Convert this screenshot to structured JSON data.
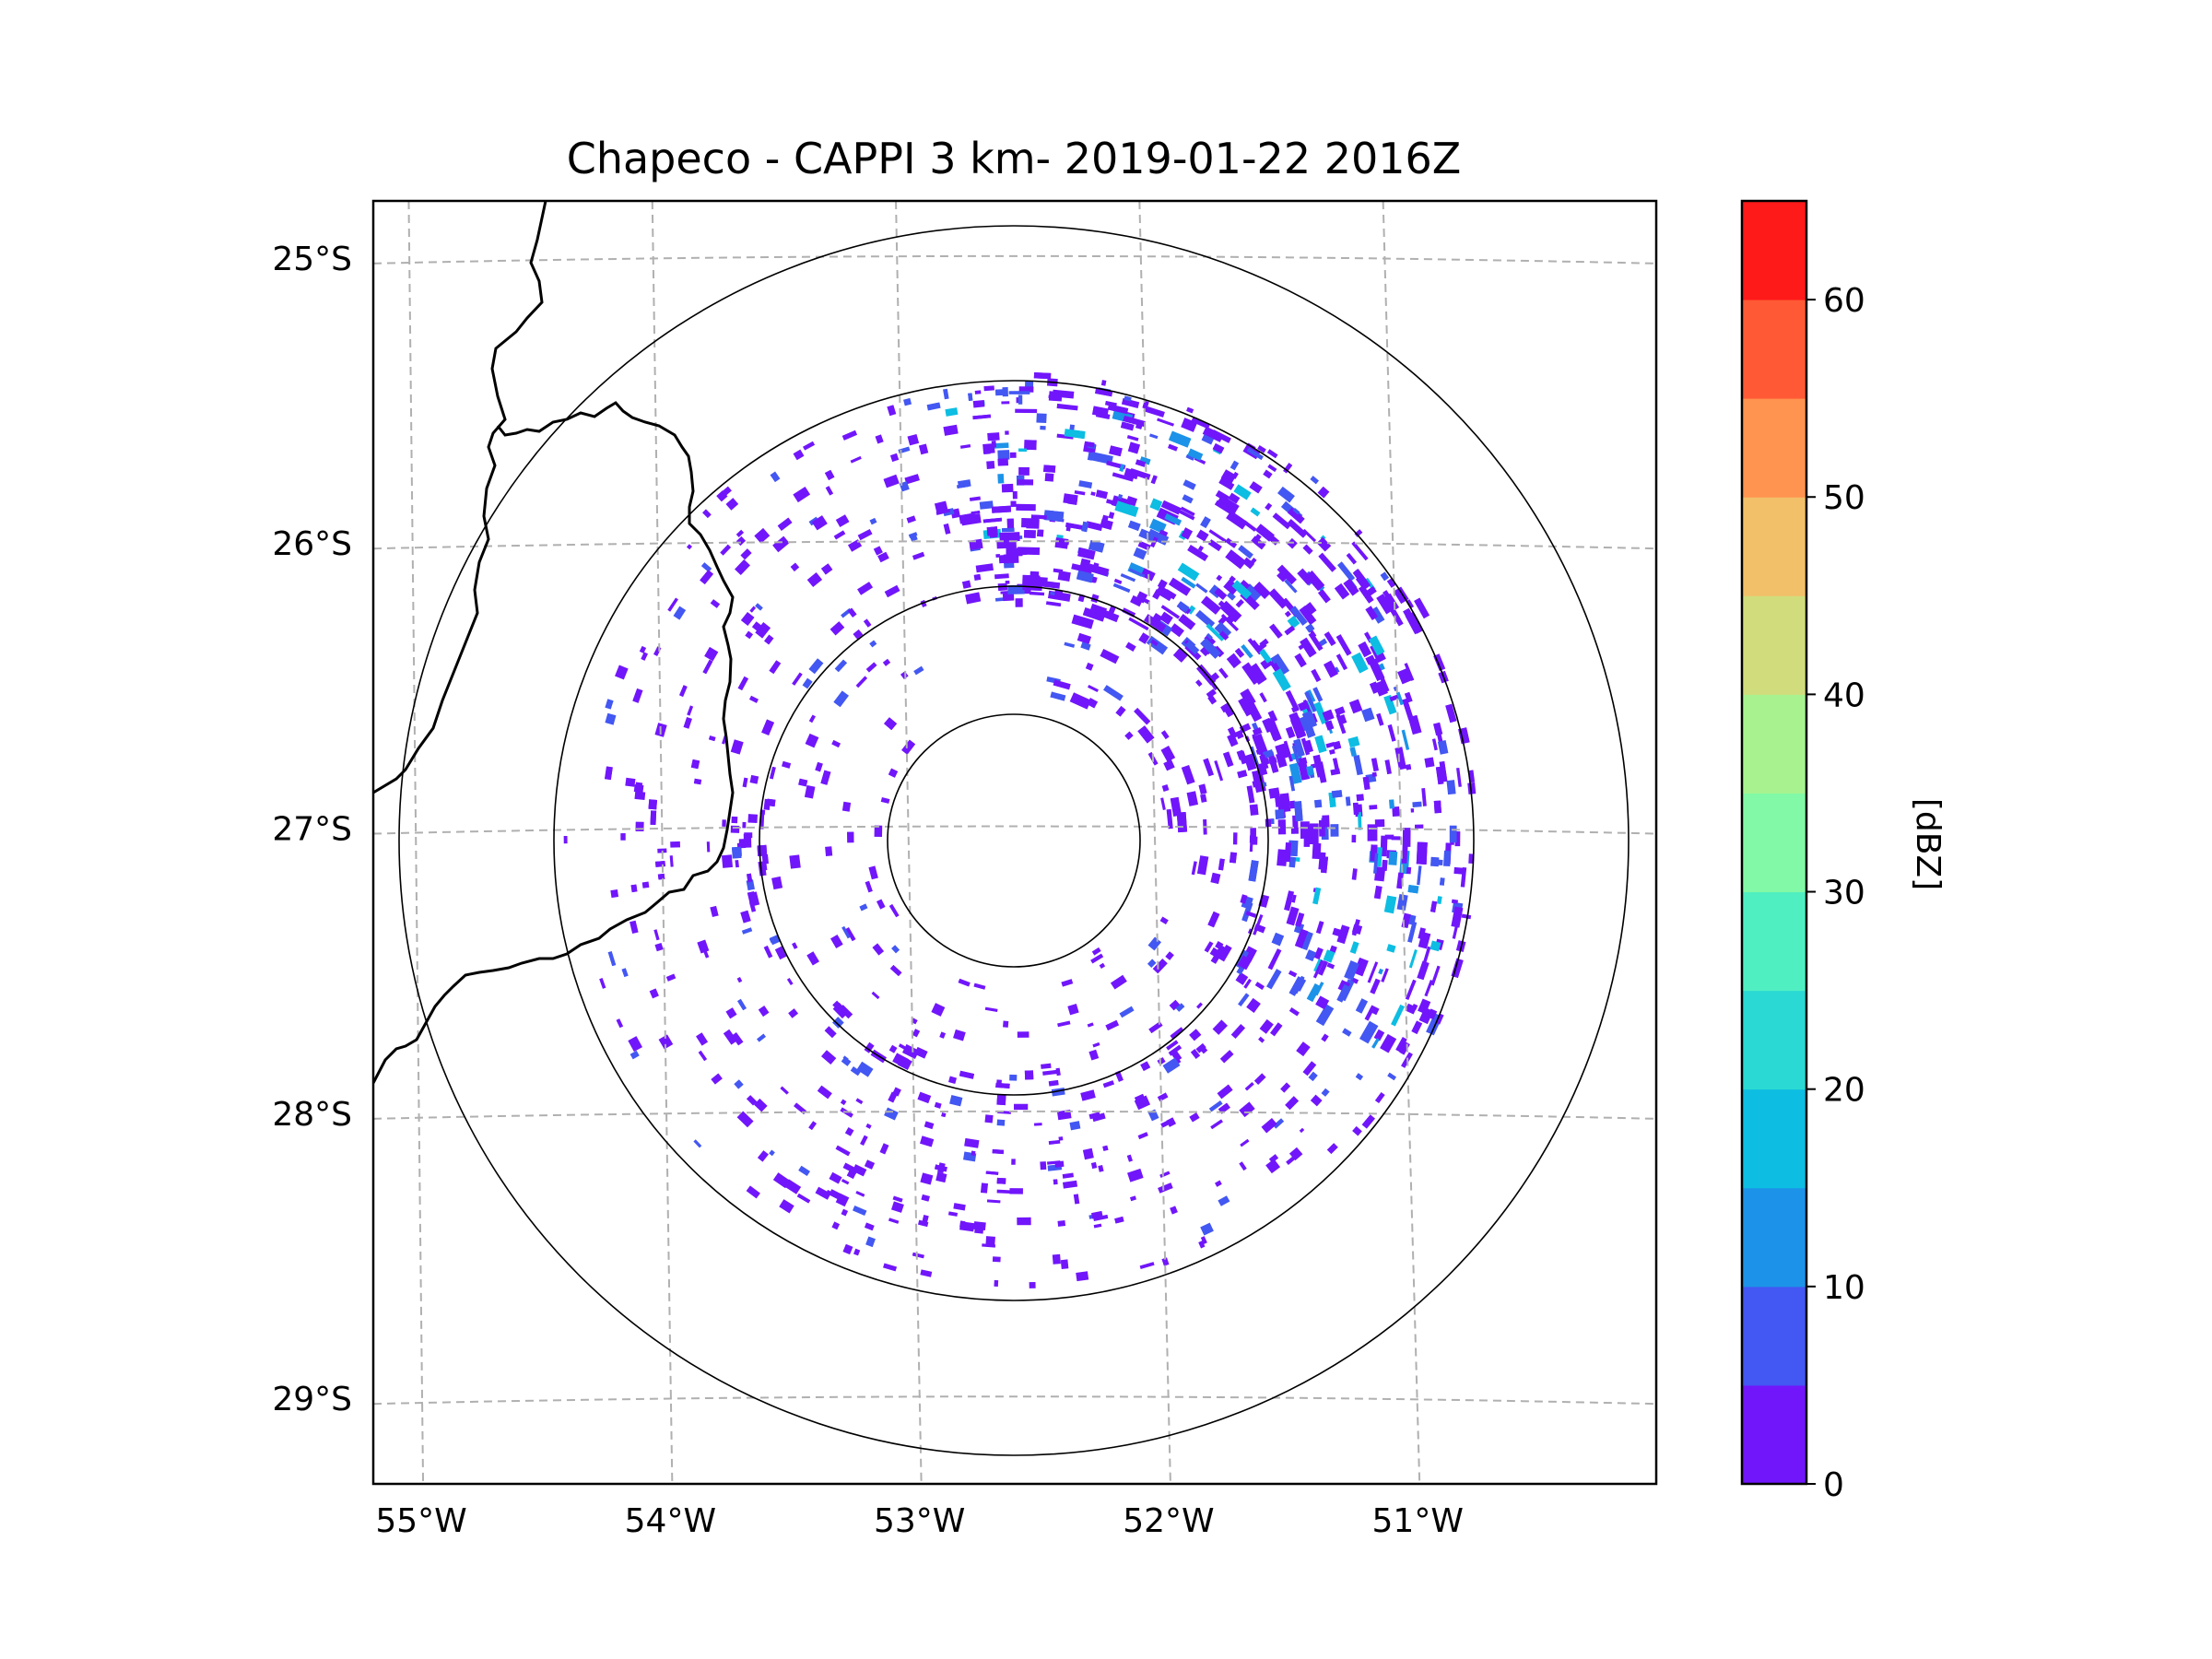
{
  "chart_data": {
    "type": "heatmap",
    "title": "Chapeco - CAPPI 3 km- 2019-01-22 2016Z",
    "product": "CAPPI",
    "radar_site": "Chapeco",
    "cappi_height": "3 km",
    "timestamp": "2019-01-22 2016Z",
    "map": {
      "lon_range": [
        -55.2,
        -50.05
      ],
      "lat_range": [
        -29.3,
        -24.8
      ],
      "lon_ticks": [
        -55,
        -54,
        -53,
        -52,
        -51
      ],
      "lon_tick_labels": [
        "55°W",
        "54°W",
        "53°W",
        "52°W",
        "51°W"
      ],
      "lat_ticks": [
        -25,
        -26,
        -27,
        -28,
        -29
      ],
      "lat_tick_labels": [
        "25°S",
        "26°S",
        "27°S",
        "28°S",
        "29°S"
      ],
      "gridlines": "dashed",
      "range_rings": 4,
      "radar_center": {
        "lon": -52.6,
        "lat": -27.02
      },
      "reflectivity_field": "radar echoes concentrated in a ring at mid-range, strongest band to the northeast and east of the radar, scattered weak echoes elsewhere"
    },
    "colorbar": {
      "label": "[dBZ]",
      "range": [
        0,
        65
      ],
      "ticks": [
        0,
        10,
        20,
        30,
        40,
        50,
        60
      ],
      "tick_labels": [
        "0",
        "10",
        "20",
        "30",
        "40",
        "50",
        "60"
      ],
      "levels": [
        {
          "min": 0,
          "max": 5,
          "color": "#7116fb"
        },
        {
          "min": 5,
          "max": 10,
          "color": "#4357f2"
        },
        {
          "min": 10,
          "max": 15,
          "color": "#1c93e8"
        },
        {
          "min": 15,
          "max": 20,
          "color": "#0dbde2"
        },
        {
          "min": 20,
          "max": 25,
          "color": "#2ad9d3"
        },
        {
          "min": 25,
          "max": 30,
          "color": "#50efc2"
        },
        {
          "min": 30,
          "max": 35,
          "color": "#82f9a6"
        },
        {
          "min": 35,
          "max": 40,
          "color": "#a8f38f"
        },
        {
          "min": 40,
          "max": 45,
          "color": "#d1dd7c"
        },
        {
          "min": 45,
          "max": 50,
          "color": "#f3c06a"
        },
        {
          "min": 50,
          "max": 55,
          "color": "#ff9350"
        },
        {
          "min": 55,
          "max": 60,
          "color": "#ff5a35"
        },
        {
          "min": 60,
          "max": 65,
          "color": "#ff1a1a"
        }
      ]
    }
  }
}
